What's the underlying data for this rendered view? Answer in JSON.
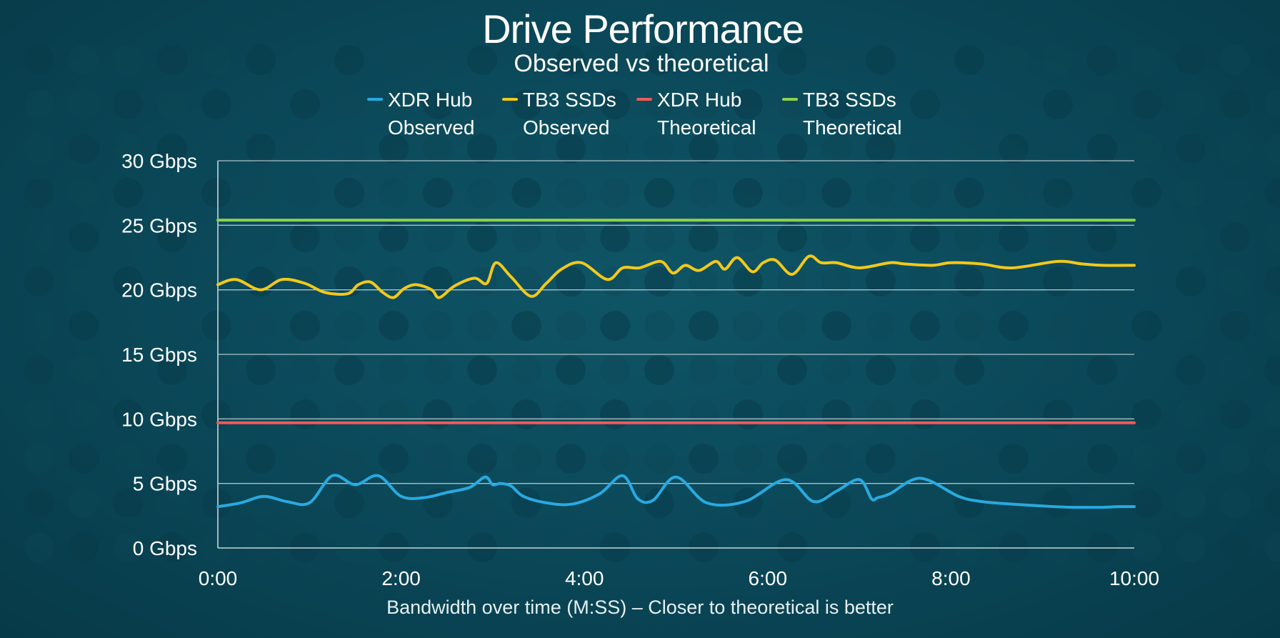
{
  "chart_data": {
    "type": "line",
    "title": "Drive Performance",
    "subtitle": "Observed vs theoretical",
    "xlabel": "Bandwidth over time (M:SS) – Closer to theoretical is better",
    "ylabel": "",
    "xlim": [
      0,
      600
    ],
    "ylim": [
      0,
      30
    ],
    "grid": true,
    "legend_position": "top",
    "x_ticks": [
      {
        "value": 0,
        "label": "0:00"
      },
      {
        "value": 120,
        "label": "2:00"
      },
      {
        "value": 240,
        "label": "4:00"
      },
      {
        "value": 360,
        "label": "6:00"
      },
      {
        "value": 480,
        "label": "8:00"
      },
      {
        "value": 600,
        "label": "10:00"
      }
    ],
    "y_ticks": [
      {
        "value": 0,
        "label": "0 Gbps"
      },
      {
        "value": 5,
        "label": "5 Gbps"
      },
      {
        "value": 10,
        "label": "10 Gbps"
      },
      {
        "value": 15,
        "label": "15 Gbps"
      },
      {
        "value": 20,
        "label": "20 Gbps"
      },
      {
        "value": 25,
        "label": "25 Gbps"
      },
      {
        "value": 30,
        "label": "30 Gbps"
      }
    ],
    "series": [
      {
        "name_line1": "XDR Hub",
        "name_line2": "Observed",
        "color": "#29a9e0",
        "x": [
          0,
          15,
          30,
          45,
          60,
          75,
          90,
          105,
          120,
          135,
          150,
          165,
          175,
          180,
          185,
          192,
          200,
          215,
          232,
          250,
          265,
          275,
          285,
          300,
          320,
          345,
          372,
          390,
          405,
          420,
          428,
          432,
          440,
          460,
          485,
          500,
          520,
          548,
          560,
          570,
          580,
          590,
          600
        ],
        "y": [
          3.2,
          3.5,
          4.0,
          3.6,
          3.5,
          5.6,
          4.9,
          5.6,
          4.0,
          3.9,
          4.3,
          4.7,
          5.5,
          4.9,
          5.0,
          4.8,
          4.0,
          3.5,
          3.4,
          4.2,
          5.6,
          3.8,
          3.7,
          5.5,
          3.5,
          3.6,
          5.3,
          3.6,
          4.4,
          5.3,
          3.8,
          3.9,
          4.2,
          5.4,
          4.0,
          3.6,
          3.4,
          3.2,
          3.15,
          3.15,
          3.15,
          3.2,
          3.2
        ]
      },
      {
        "name_line1": "TB3 SSDs",
        "name_line2": "Observed",
        "color": "#f2c81c",
        "x": [
          0,
          12,
          28,
          42,
          57,
          70,
          85,
          92,
          100,
          108,
          115,
          122,
          130,
          140,
          145,
          155,
          168,
          176,
          182,
          192,
          205,
          215,
          225,
          238,
          255,
          265,
          276,
          290,
          298,
          306,
          315,
          326,
          332,
          340,
          350,
          357,
          365,
          376,
          387,
          395,
          405,
          420,
          440,
          450,
          468,
          480,
          500,
          520,
          550,
          566,
          580,
          600
        ],
        "y": [
          20.4,
          20.8,
          20.0,
          20.8,
          20.5,
          19.8,
          19.7,
          20.4,
          20.6,
          19.8,
          19.4,
          20.1,
          20.4,
          20.0,
          19.4,
          20.3,
          20.9,
          20.5,
          22.1,
          21.0,
          19.5,
          20.5,
          21.6,
          22.1,
          20.8,
          21.7,
          21.7,
          22.2,
          21.3,
          21.9,
          21.5,
          22.2,
          21.6,
          22.5,
          21.4,
          22.1,
          22.3,
          21.2,
          22.6,
          22.1,
          22.1,
          21.7,
          22.1,
          22.0,
          21.9,
          22.1,
          22.0,
          21.7,
          22.2,
          22.0,
          21.9,
          21.9
        ]
      },
      {
        "name_line1": "XDR Hub",
        "name_line2": "Theoretical",
        "color": "#f05a5a",
        "x": [
          0,
          600
        ],
        "y": [
          9.7,
          9.7
        ]
      },
      {
        "name_line1": "TB3 SSDs",
        "name_line2": "Theoretical",
        "color": "#8ed14c",
        "x": [
          0,
          600
        ],
        "y": [
          25.4,
          25.4
        ]
      }
    ]
  }
}
